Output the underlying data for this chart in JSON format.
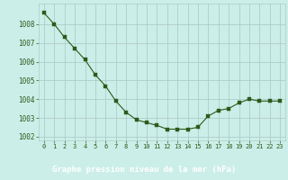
{
  "x": [
    0,
    1,
    2,
    3,
    4,
    5,
    6,
    7,
    8,
    9,
    10,
    11,
    12,
    13,
    14,
    15,
    16,
    17,
    18,
    19,
    20,
    21,
    22,
    23
  ],
  "y": [
    1008.6,
    1008.0,
    1007.3,
    1006.7,
    1006.1,
    1005.3,
    1004.7,
    1003.9,
    1003.3,
    1002.9,
    1002.75,
    1002.6,
    1002.4,
    1002.4,
    1002.4,
    1002.5,
    1003.1,
    1003.4,
    1003.5,
    1003.8,
    1004.0,
    1003.9,
    1003.9,
    1003.9
  ],
  "line_color": "#2d5a1b",
  "marker_color": "#2d5a1b",
  "bg_color": "#cceee8",
  "plot_bg_color": "#cceee8",
  "bottom_bar_color": "#3a6b28",
  "grid_color": "#b0ccc8",
  "xlabel": "Graphe pression niveau de la mer (hPa)",
  "xlabel_color": "#ffffff",
  "tick_color": "#2d5a1b",
  "ylim": [
    1001.8,
    1009.1
  ],
  "xlim": [
    -0.5,
    23.5
  ],
  "yticks": [
    1002,
    1003,
    1004,
    1005,
    1006,
    1007,
    1008
  ],
  "xticks": [
    0,
    1,
    2,
    3,
    4,
    5,
    6,
    7,
    8,
    9,
    10,
    11,
    12,
    13,
    14,
    15,
    16,
    17,
    18,
    19,
    20,
    21,
    22,
    23
  ],
  "ytick_fontsize": 5.5,
  "xtick_fontsize": 5.0,
  "xlabel_fontsize": 6.5
}
